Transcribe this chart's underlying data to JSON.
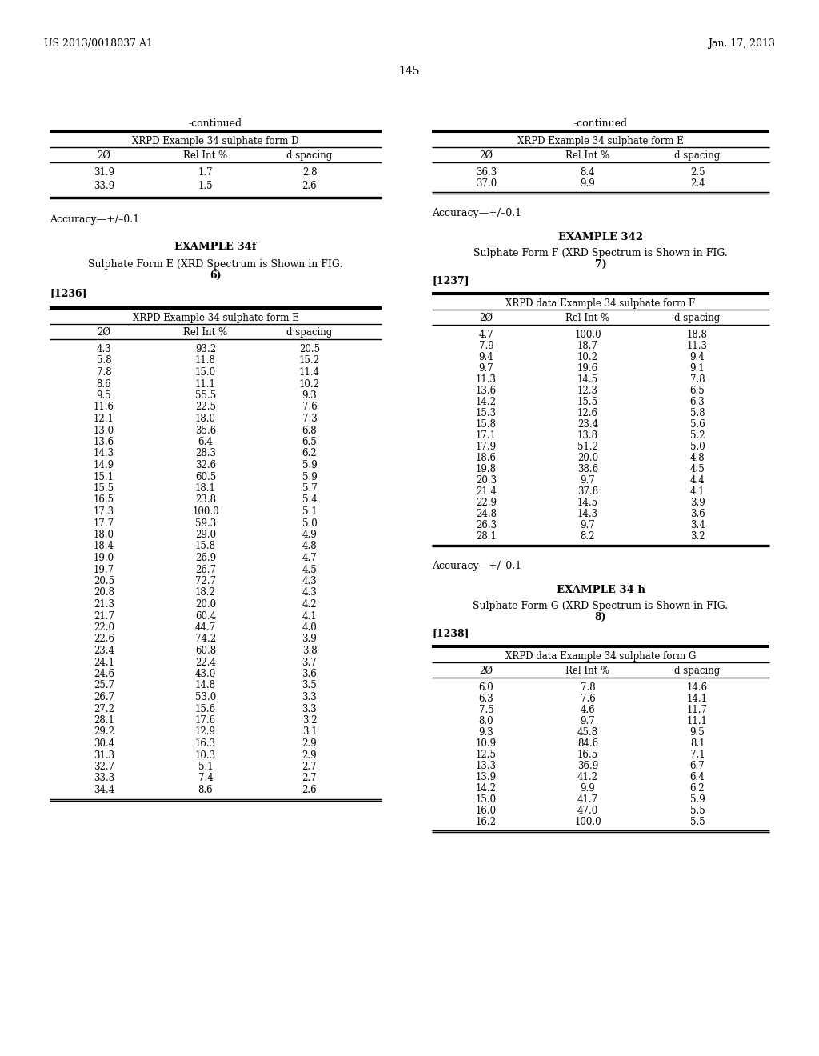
{
  "background_color": "#ffffff",
  "page_number": "145",
  "header_left": "US 2013/0018037 A1",
  "header_right": "Jan. 17, 2013",
  "left_continued_label": "-continued",
  "left_table1_title": "XRPD Example 34 sulphate form D",
  "left_table1_headers": [
    "2Ø",
    "Rel Int %",
    "d spacing"
  ],
  "left_table1_data": [
    [
      "31.9",
      "1.7",
      "2.8"
    ],
    [
      "33.9",
      "1.5",
      "2.6"
    ]
  ],
  "left_accuracy1": "Accuracy—+/–0.1",
  "left_example_title": "EXAMPLE 34f",
  "left_example_subtitle1": "Sulphate Form E (XRD Spectrum is Shown in FIG.",
  "left_example_subtitle2": "6)",
  "left_ref": "[1236]",
  "left_table2_title": "XRPD Example 34 sulphate form E",
  "left_table2_headers": [
    "2Ø",
    "Rel Int %",
    "d spacing"
  ],
  "left_table2_data": [
    [
      "4.3",
      "93.2",
      "20.5"
    ],
    [
      "5.8",
      "11.8",
      "15.2"
    ],
    [
      "7.8",
      "15.0",
      "11.4"
    ],
    [
      "8.6",
      "11.1",
      "10.2"
    ],
    [
      "9.5",
      "55.5",
      "9.3"
    ],
    [
      "11.6",
      "22.5",
      "7.6"
    ],
    [
      "12.1",
      "18.0",
      "7.3"
    ],
    [
      "13.0",
      "35.6",
      "6.8"
    ],
    [
      "13.6",
      "6.4",
      "6.5"
    ],
    [
      "14.3",
      "28.3",
      "6.2"
    ],
    [
      "14.9",
      "32.6",
      "5.9"
    ],
    [
      "15.1",
      "60.5",
      "5.9"
    ],
    [
      "15.5",
      "18.1",
      "5.7"
    ],
    [
      "16.5",
      "23.8",
      "5.4"
    ],
    [
      "17.3",
      "100.0",
      "5.1"
    ],
    [
      "17.7",
      "59.3",
      "5.0"
    ],
    [
      "18.0",
      "29.0",
      "4.9"
    ],
    [
      "18.4",
      "15.8",
      "4.8"
    ],
    [
      "19.0",
      "26.9",
      "4.7"
    ],
    [
      "19.7",
      "26.7",
      "4.5"
    ],
    [
      "20.5",
      "72.7",
      "4.3"
    ],
    [
      "20.8",
      "18.2",
      "4.3"
    ],
    [
      "21.3",
      "20.0",
      "4.2"
    ],
    [
      "21.7",
      "60.4",
      "4.1"
    ],
    [
      "22.0",
      "44.7",
      "4.0"
    ],
    [
      "22.6",
      "74.2",
      "3.9"
    ],
    [
      "23.4",
      "60.8",
      "3.8"
    ],
    [
      "24.1",
      "22.4",
      "3.7"
    ],
    [
      "24.6",
      "43.0",
      "3.6"
    ],
    [
      "25.7",
      "14.8",
      "3.5"
    ],
    [
      "26.7",
      "53.0",
      "3.3"
    ],
    [
      "27.2",
      "15.6",
      "3.3"
    ],
    [
      "28.1",
      "17.6",
      "3.2"
    ],
    [
      "29.2",
      "12.9",
      "3.1"
    ],
    [
      "30.4",
      "16.3",
      "2.9"
    ],
    [
      "31.3",
      "10.3",
      "2.9"
    ],
    [
      "32.7",
      "5.1",
      "2.7"
    ],
    [
      "33.3",
      "7.4",
      "2.7"
    ],
    [
      "34.4",
      "8.6",
      "2.6"
    ]
  ],
  "right_continued_label": "-continued",
  "right_table1_title": "XRPD Example 34 sulphate form E",
  "right_table1_headers": [
    "2Ø",
    "Rel Int %",
    "d spacing"
  ],
  "right_table1_data": [
    [
      "36.3",
      "8.4",
      "2.5"
    ],
    [
      "37.0",
      "9.9",
      "2.4"
    ]
  ],
  "right_accuracy1": "Accuracy—+/–0.1",
  "right_example_title": "EXAMPLE 342",
  "right_example_subtitle1": "Sulphate Form F (XRD Spectrum is Shown in FIG.",
  "right_example_subtitle2": "7)",
  "right_ref": "[1237]",
  "right_table2_title": "XRPD data Example 34 sulphate form F",
  "right_table2_headers": [
    "2Ø",
    "Rel Int %",
    "d spacing"
  ],
  "right_table2_data": [
    [
      "4.7",
      "100.0",
      "18.8"
    ],
    [
      "7.9",
      "18.7",
      "11.3"
    ],
    [
      "9.4",
      "10.2",
      "9.4"
    ],
    [
      "9.7",
      "19.6",
      "9.1"
    ],
    [
      "11.3",
      "14.5",
      "7.8"
    ],
    [
      "13.6",
      "12.3",
      "6.5"
    ],
    [
      "14.2",
      "15.5",
      "6.3"
    ],
    [
      "15.3",
      "12.6",
      "5.8"
    ],
    [
      "15.8",
      "23.4",
      "5.6"
    ],
    [
      "17.1",
      "13.8",
      "5.2"
    ],
    [
      "17.9",
      "51.2",
      "5.0"
    ],
    [
      "18.6",
      "20.0",
      "4.8"
    ],
    [
      "19.8",
      "38.6",
      "4.5"
    ],
    [
      "20.3",
      "9.7",
      "4.4"
    ],
    [
      "21.4",
      "37.8",
      "4.1"
    ],
    [
      "22.9",
      "14.5",
      "3.9"
    ],
    [
      "24.8",
      "14.3",
      "3.6"
    ],
    [
      "26.3",
      "9.7",
      "3.4"
    ],
    [
      "28.1",
      "8.2",
      "3.2"
    ]
  ],
  "right_accuracy2": "Accuracy—+/–0.1",
  "right_example2_title": "EXAMPLE 34 h",
  "right_example2_subtitle1": "Sulphate Form G (XRD Spectrum is Shown in FIG.",
  "right_example2_subtitle2": "8)",
  "right_ref2": "[1238]",
  "right_table3_title": "XRPD data Example 34 sulphate form G",
  "right_table3_headers": [
    "2Ø",
    "Rel Int %",
    "d spacing"
  ],
  "right_table3_data": [
    [
      "6.0",
      "7.8",
      "14.6"
    ],
    [
      "6.3",
      "7.6",
      "14.1"
    ],
    [
      "7.5",
      "4.6",
      "11.7"
    ],
    [
      "8.0",
      "9.7",
      "11.1"
    ],
    [
      "9.3",
      "45.8",
      "9.5"
    ],
    [
      "10.9",
      "84.6",
      "8.1"
    ],
    [
      "12.5",
      "16.5",
      "7.1"
    ],
    [
      "13.3",
      "36.9",
      "6.7"
    ],
    [
      "13.9",
      "41.2",
      "6.4"
    ],
    [
      "14.2",
      "9.9",
      "6.2"
    ],
    [
      "15.0",
      "41.7",
      "5.9"
    ],
    [
      "16.0",
      "47.0",
      "5.5"
    ],
    [
      "16.2",
      "100.0",
      "5.5"
    ]
  ]
}
